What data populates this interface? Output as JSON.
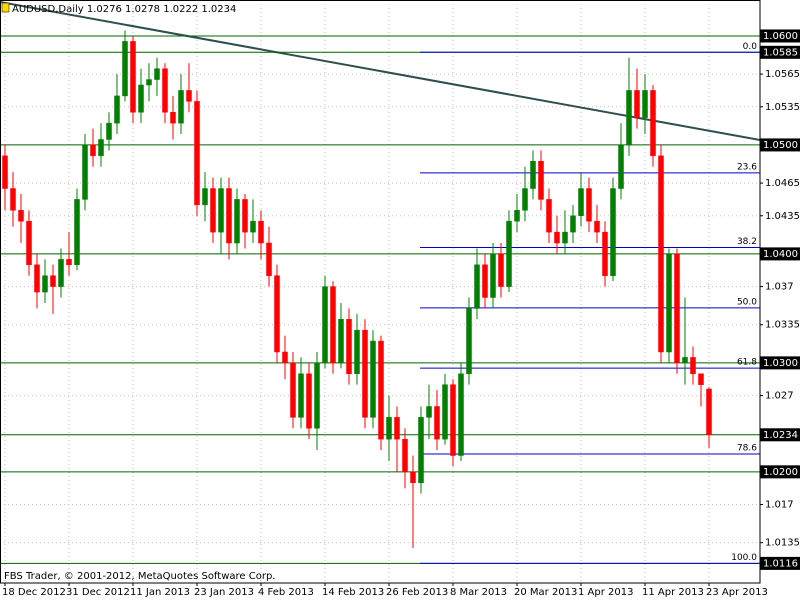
{
  "chart_data": {
    "type": "candlestick",
    "title": "AUDUSD,Daily  1.0276 1.0278 1.0222 1.0234",
    "footer": "FBS Trader, © 2001-2012, MetaQuotes Software Corp.",
    "categories": [
      "18 Dec 2012",
      null,
      null,
      null,
      null,
      null,
      null,
      null,
      "31 Dec 2012",
      null,
      null,
      null,
      null,
      null,
      null,
      null,
      "11 Jan 2013",
      null,
      null,
      null,
      null,
      null,
      null,
      null,
      "23 Jan 2013",
      null,
      null,
      null,
      null,
      null,
      null,
      null,
      "4 Feb 2013",
      null,
      null,
      null,
      null,
      null,
      null,
      null,
      "14 Feb 2013",
      null,
      null,
      null,
      null,
      null,
      null,
      null,
      "26 Feb 2013",
      null,
      null,
      null,
      null,
      null,
      null,
      null,
      "8 Mar 2013",
      null,
      null,
      null,
      null,
      null,
      null,
      null,
      "20 Mar 2013",
      null,
      null,
      null,
      null,
      null,
      null,
      null,
      "1 Apr 2013",
      null,
      null,
      null,
      null,
      null,
      null,
      null,
      "11 Apr 2013",
      null,
      null,
      null,
      null,
      null,
      null,
      null,
      "23 Apr 2013"
    ],
    "open": [
      1.049,
      1.046,
      1.044,
      1.043,
      1.039,
      1.0365,
      1.038,
      1.037,
      1.0395,
      1.039,
      1.045,
      1.05,
      1.049,
      1.0505,
      1.052,
      1.0545,
      1.0595,
      1.053,
      1.0555,
      1.056,
      1.057,
      1.053,
      1.052,
      1.055,
      1.054,
      1.0445,
      1.046,
      1.042,
      1.046,
      1.041,
      1.045,
      1.042,
      1.043,
      1.041,
      1.038,
      1.031,
      1.03,
      1.025,
      1.029,
      1.024,
      1.03,
      1.037,
      1.03,
      1.034,
      1.029,
      1.033,
      1.025,
      1.032,
      1.023,
      1.025,
      1.023,
      1.02,
      1.019,
      1.025,
      1.026,
      1.023,
      1.028,
      1.0215,
      1.029,
      1.035,
      1.039,
      1.036,
      1.04,
      1.037,
      1.043,
      1.044,
      1.046,
      1.0485,
      1.045,
      1.042,
      1.041,
      1.042,
      1.0435,
      1.046,
      1.043,
      1.042,
      1.038,
      1.046,
      1.05,
      1.055,
      1.0525,
      1.055,
      1.049,
      1.031,
      1.04,
      1.03,
      1.0305,
      1.029,
      1.0276
    ],
    "high": [
      1.05,
      1.0475,
      1.0455,
      1.044,
      1.04,
      1.0395,
      1.039,
      1.0405,
      1.042,
      1.046,
      1.051,
      1.0515,
      1.052,
      1.053,
      1.0565,
      1.0605,
      1.06,
      1.057,
      1.0575,
      1.058,
      1.0575,
      1.0545,
      1.0565,
      1.0575,
      1.055,
      1.0475,
      1.047,
      1.047,
      1.047,
      1.046,
      1.0455,
      1.045,
      1.044,
      1.0425,
      1.039,
      1.0325,
      1.031,
      1.0305,
      1.03,
      1.031,
      1.038,
      1.0375,
      1.0355,
      1.035,
      1.0345,
      1.034,
      1.033,
      1.0325,
      1.027,
      1.026,
      1.024,
      1.0215,
      1.026,
      1.028,
      1.0275,
      1.029,
      1.0285,
      1.03,
      1.036,
      1.0405,
      1.04,
      1.041,
      1.041,
      1.044,
      1.0455,
      1.048,
      1.0495,
      1.0495,
      1.046,
      1.0435,
      1.044,
      1.0445,
      1.0475,
      1.047,
      1.0445,
      1.043,
      1.047,
      1.052,
      1.058,
      1.057,
      1.0565,
      1.0555,
      1.05,
      1.0405,
      1.0405,
      1.036,
      1.0315,
      1.029,
      1.0278
    ],
    "low": [
      1.044,
      1.0425,
      1.041,
      1.038,
      1.035,
      1.0355,
      1.0345,
      1.036,
      1.038,
      1.0385,
      1.044,
      1.048,
      1.048,
      1.0495,
      1.051,
      1.054,
      1.052,
      1.052,
      1.054,
      1.0545,
      1.052,
      1.0505,
      1.051,
      1.053,
      1.0435,
      1.043,
      1.041,
      1.04,
      1.0395,
      1.04,
      1.0405,
      1.041,
      1.0395,
      1.037,
      1.03,
      1.0285,
      1.024,
      1.024,
      1.023,
      1.022,
      1.0295,
      1.029,
      1.0295,
      1.028,
      1.028,
      1.024,
      1.024,
      1.022,
      1.021,
      1.02,
      1.0185,
      1.013,
      1.018,
      1.023,
      1.022,
      1.0225,
      1.0205,
      1.021,
      1.028,
      1.034,
      1.035,
      1.035,
      1.036,
      1.0365,
      1.042,
      1.043,
      1.045,
      1.044,
      1.041,
      1.04,
      1.04,
      1.041,
      1.0425,
      1.042,
      1.041,
      1.037,
      1.0375,
      1.045,
      1.049,
      1.0515,
      1.051,
      1.048,
      1.03,
      1.03,
      1.029,
      1.028,
      1.028,
      1.026,
      1.0222
    ],
    "close": [
      1.046,
      1.044,
      1.043,
      1.039,
      1.0365,
      1.038,
      1.037,
      1.0395,
      1.039,
      1.045,
      1.05,
      1.049,
      1.0505,
      1.052,
      1.0545,
      1.0595,
      1.053,
      1.0555,
      1.056,
      1.057,
      1.053,
      1.052,
      1.055,
      1.054,
      1.0445,
      1.046,
      1.042,
      1.046,
      1.041,
      1.045,
      1.042,
      1.043,
      1.041,
      1.038,
      1.031,
      1.03,
      1.025,
      1.029,
      1.024,
      1.03,
      1.037,
      1.03,
      1.034,
      1.029,
      1.033,
      1.025,
      1.032,
      1.023,
      1.025,
      1.023,
      1.02,
      1.019,
      1.025,
      1.026,
      1.023,
      1.028,
      1.0215,
      1.029,
      1.035,
      1.039,
      1.036,
      1.04,
      1.037,
      1.043,
      1.044,
      1.046,
      1.0485,
      1.045,
      1.042,
      1.041,
      1.042,
      1.0435,
      1.046,
      1.043,
      1.042,
      1.038,
      1.046,
      1.05,
      1.055,
      1.0525,
      1.055,
      1.049,
      1.031,
      1.04,
      1.03,
      1.0305,
      1.029,
      1.028,
      1.0234
    ],
    "bull_color": "#008000",
    "bear_color": "#ff0000",
    "ylim": [
      1.0098,
      1.0633
    ],
    "yticks": [
      1.0565,
      1.0535,
      1.0465,
      1.0435,
      1.037,
      1.0335,
      1.027,
      1.017,
      1.0135
    ],
    "levels": [
      {
        "value": 1.06,
        "label": "1.0600"
      },
      1.0585,
      {
        "value": 1.05,
        "label": "1.0500"
      },
      {
        "value": 1.04,
        "label": "1.0400"
      },
      {
        "value": 1.03,
        "label": "1.0300"
      },
      1.0234,
      {
        "value": 1.02,
        "label": "1.0200"
      },
      1.0116
    ],
    "level_color": "#006400",
    "fibonacci": {
      "from": 1.0585,
      "to": 1.0116,
      "color": "#0000cd",
      "levels": [
        {
          "value": 0,
          "label": "0.0"
        },
        23.6,
        38.2,
        {
          "value": 50,
          "label": "50.0"
        },
        61.8,
        78.6,
        {
          "value": 100,
          "label": "100.0"
        }
      ]
    },
    "grid": true
  }
}
